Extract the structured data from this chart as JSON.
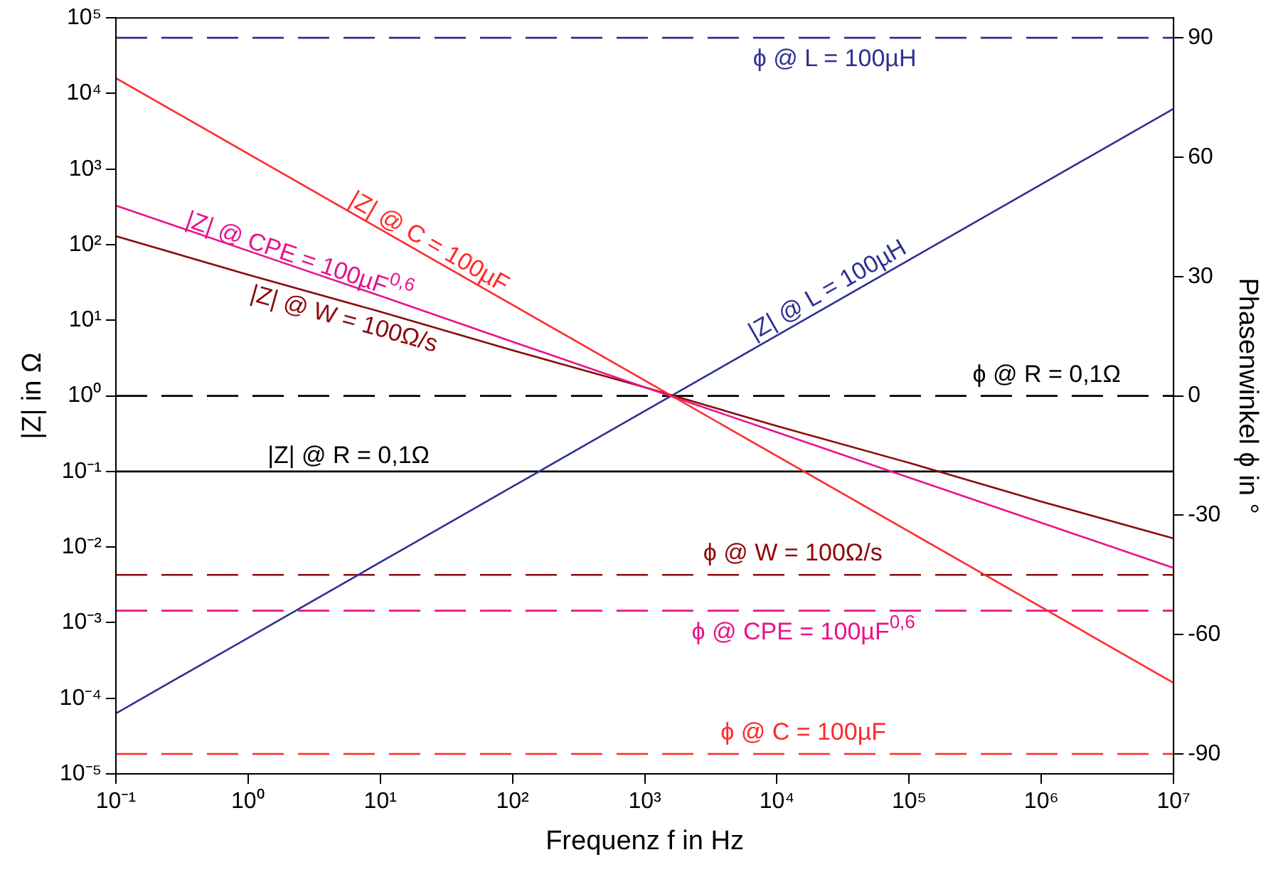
{
  "chart_data": {
    "type": "line",
    "xlabel": "Frequenz f in Hz",
    "ylabel": "|Z| in Ω",
    "y2label": "Phasenwinkel ϕ in °",
    "log": "xy",
    "grid": false,
    "legend": false,
    "marker": "none",
    "x": [
      0.1,
      1,
      10,
      100,
      1000,
      10000,
      100000,
      1000000,
      10000000
    ],
    "xlim": [
      0.1,
      10000000
    ],
    "xticks": [
      {
        "value": 0.1,
        "label": "10⁻¹"
      },
      {
        "value": 1,
        "label": "10⁰"
      },
      {
        "value": 10,
        "label": "10¹"
      },
      {
        "value": 100,
        "label": "10²"
      },
      {
        "value": 1000,
        "label": "10³"
      },
      {
        "value": 10000,
        "label": "10⁴"
      },
      {
        "value": 100000,
        "label": "10⁵"
      },
      {
        "value": 1000000,
        "label": "10⁶"
      },
      {
        "value": 10000000,
        "label": "10⁷"
      }
    ],
    "ylim": [
      1e-05,
      100000
    ],
    "yticks": [
      {
        "value": 1e-05,
        "label": "10⁻⁵"
      },
      {
        "value": 0.0001,
        "label": "10⁻⁴"
      },
      {
        "value": 0.001,
        "label": "10⁻³"
      },
      {
        "value": 0.01,
        "label": "10⁻²"
      },
      {
        "value": 0.1,
        "label": "10⁻¹"
      },
      {
        "value": 1,
        "label": "10⁰"
      },
      {
        "value": 10,
        "label": "10¹"
      },
      {
        "value": 100,
        "label": "10²"
      },
      {
        "value": 1000,
        "label": "10³"
      },
      {
        "value": 10000,
        "label": "10⁴"
      },
      {
        "value": 100000,
        "label": "10⁵"
      }
    ],
    "y2lim": [
      -95,
      95
    ],
    "y2ticks": [
      -90,
      -60,
      -30,
      0,
      30,
      60,
      90
    ],
    "series": [
      {
        "name": "|Z| @ C = 100µF",
        "color": "#ff2a2a",
        "line_style": "solid",
        "values": [
          16000,
          1600,
          160,
          16,
          1.6,
          0.16,
          0.016,
          0.0016,
          0.00016
        ]
      },
      {
        "name": "|Z| @ CPE = 100µF$^{0,6}$",
        "color": "#e8138c",
        "line_style": "solid",
        "values": [
          330,
          83,
          21,
          5.2,
          1.3,
          0.33,
          0.083,
          0.021,
          0.0053
        ]
      },
      {
        "name": "|Z| @ W = 100Ω/s",
        "color": "#8b0a0a",
        "line_style": "solid",
        "values": [
          130,
          40,
          13,
          4,
          1.3,
          0.4,
          0.13,
          0.04,
          0.013
        ]
      },
      {
        "name": "|Z| @ L = 100µH",
        "color": "#2e3192",
        "line_style": "solid",
        "values": [
          6.3e-05,
          0.00063,
          0.0063,
          0.063,
          0.63,
          6.3,
          63,
          630,
          6300
        ]
      },
      {
        "name": "|Z| @ R = 0,1Ω",
        "color": "#000000",
        "line_style": "solid",
        "values": [
          0.1,
          0.1,
          0.1,
          0.1,
          0.1,
          0.1,
          0.1,
          0.1,
          0.1
        ]
      },
      {
        "name": "ϕ @ L = 100µH",
        "color": "#2e3192",
        "line_style": "dashed",
        "axis": "y2",
        "values": [
          90,
          90,
          90,
          90,
          90,
          90,
          90,
          90,
          90
        ]
      },
      {
        "name": "ϕ @ R = 0,1Ω",
        "color": "#000000",
        "line_style": "dashed",
        "axis": "y2",
        "values": [
          0,
          0,
          0,
          0,
          0,
          0,
          0,
          0,
          0
        ]
      },
      {
        "name": "ϕ @ W = 100Ω/s",
        "color": "#8b0a0a",
        "line_style": "dashed",
        "axis": "y2",
        "values": [
          -45,
          -45,
          -45,
          -45,
          -45,
          -45,
          -45,
          -45,
          -45
        ]
      },
      {
        "name": "ϕ @ CPE = 100µF$^{0,6}$",
        "color": "#e8138c",
        "line_style": "dashed",
        "axis": "y2",
        "values": [
          -54,
          -54,
          -54,
          -54,
          -54,
          -54,
          -54,
          -54,
          -54
        ]
      },
      {
        "name": "ϕ @ C = 100µF",
        "color": "#ff2a2a",
        "line_style": "dashed",
        "axis": "y2",
        "values": [
          -90,
          -90,
          -90,
          -90,
          -90,
          -90,
          -90,
          -90,
          -90
        ]
      }
    ]
  }
}
